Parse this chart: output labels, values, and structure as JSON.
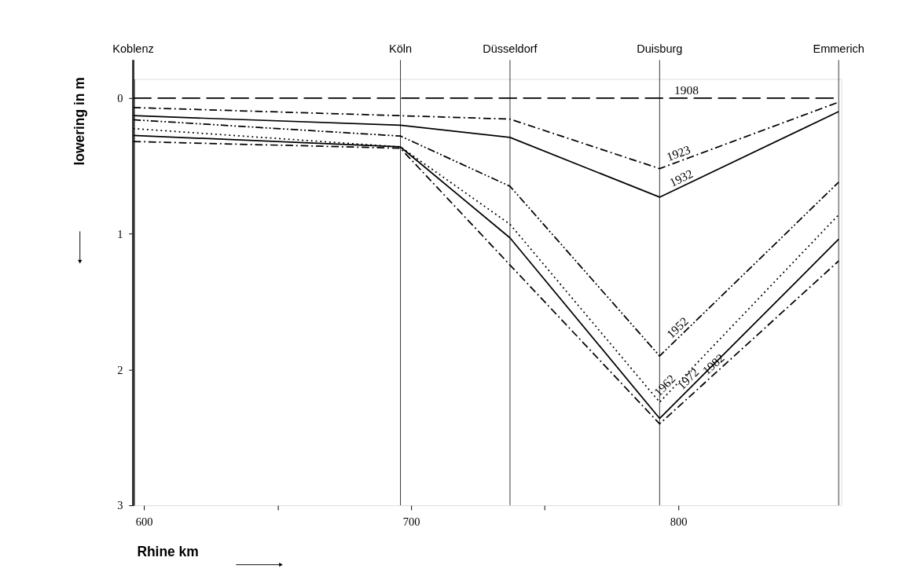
{
  "chart_data": {
    "type": "line",
    "xlabel": "Rhine km",
    "ylabel": "lowering in m",
    "xlim": [
      596,
      861
    ],
    "ylim": [
      3,
      -0.14
    ],
    "xticks": [
      600,
      {
        "value": 650,
        "label": null
      },
      700,
      {
        "value": 750,
        "label": null
      },
      800
    ],
    "yticks": [
      0,
      1,
      2,
      3
    ],
    "grid": false,
    "marker": "none",
    "x": [
      596,
      696,
      737,
      793,
      860
    ],
    "series": [
      {
        "name": "1908",
        "color": "#000000",
        "line_style": "dashed",
        "values": [
          0,
          0,
          0,
          0,
          0
        ]
      },
      {
        "name": "1923",
        "color": "#000000",
        "line_style": "dashdot",
        "values": [
          0.07,
          0.13,
          0.155,
          0.52,
          0.03
        ]
      },
      {
        "name": "1932",
        "color": "#000000",
        "line_style": "solid",
        "values": [
          0.13,
          0.2,
          0.29,
          0.73,
          0.1
        ]
      },
      {
        "name": "1952",
        "color": "#000000",
        "line_style": "dashdotdot",
        "values": [
          0.16,
          0.28,
          0.65,
          1.9,
          0.62
        ]
      },
      {
        "name": "1962",
        "color": "#000000",
        "line_style": "dotted",
        "values": [
          0.225,
          0.36,
          0.93,
          2.24,
          0.86
        ]
      },
      {
        "name": "1972",
        "color": "#000000",
        "line_style": "solid",
        "values": [
          0.275,
          0.36,
          1.03,
          2.36,
          1.04
        ]
      },
      {
        "name": "1982",
        "color": "#000000",
        "line_style": "dashdot",
        "values": [
          0.32,
          0.37,
          1.23,
          2.4,
          1.2
        ]
      }
    ],
    "ref_lines": [
      {
        "axis": "x",
        "value": 596,
        "label": "Koblenz"
      },
      {
        "axis": "x",
        "value": 696,
        "label": "Köln"
      },
      {
        "axis": "x",
        "value": 737,
        "label": "Düsseldorf"
      },
      {
        "axis": "x",
        "value": 793,
        "label": "Duisburg"
      },
      {
        "axis": "x",
        "value": 860,
        "label": "Emmerich"
      }
    ]
  }
}
